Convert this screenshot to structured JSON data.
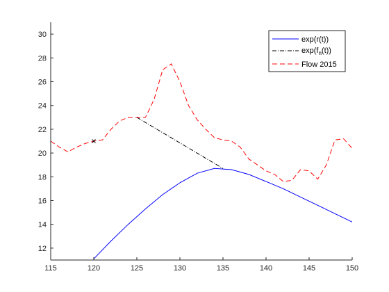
{
  "chart_data": {
    "type": "line",
    "xlim": [
      115,
      150
    ],
    "ylim": [
      11,
      31
    ],
    "xticks": [
      115,
      120,
      125,
      130,
      135,
      140,
      145,
      150
    ],
    "yticks": [
      12,
      14,
      16,
      18,
      20,
      22,
      24,
      26,
      28,
      30
    ],
    "grid": false,
    "legend_position": "top-right",
    "series": [
      {
        "name": "exp(r(t))",
        "color": "#0000ff",
        "style": "solid",
        "x": [
          120,
          122,
          124,
          126,
          128,
          130,
          132,
          134,
          136,
          138,
          140,
          142,
          144,
          146,
          148,
          150
        ],
        "y": [
          11.1,
          12.6,
          14.0,
          15.3,
          16.5,
          17.5,
          18.3,
          18.7,
          18.6,
          18.2,
          17.6,
          17.0,
          16.3,
          15.6,
          14.9,
          14.2
        ]
      },
      {
        "name": "exp(f_n(t))",
        "color": "#000000",
        "style": "dashdot",
        "x": [
          125,
          135
        ],
        "y": [
          23.0,
          18.7
        ]
      },
      {
        "name": "Flow 2015",
        "color": "#ff0000",
        "style": "dashed",
        "x": [
          115,
          116,
          117,
          118,
          119,
          120,
          121,
          122,
          123,
          124,
          125,
          126,
          127,
          128,
          129,
          130,
          131,
          132,
          133,
          134,
          135,
          136,
          137,
          138,
          139,
          140,
          141,
          142,
          143,
          144,
          145,
          146,
          147,
          148,
          149,
          150
        ],
        "y": [
          21.0,
          20.5,
          20.1,
          20.5,
          20.8,
          21.0,
          21.1,
          22.0,
          22.7,
          23.0,
          23.0,
          23.0,
          24.5,
          27.0,
          27.5,
          26.0,
          24.0,
          22.8,
          22.0,
          21.3,
          21.1,
          21.0,
          20.5,
          19.5,
          19.0,
          18.5,
          18.2,
          17.6,
          17.7,
          18.6,
          18.5,
          17.8,
          19.0,
          21.1,
          21.2,
          20.4
        ]
      }
    ],
    "markers": [
      {
        "shape": "x",
        "color": "#000000",
        "x": 120,
        "y": 21.0
      }
    ],
    "legend": [
      "exp(r(t))",
      "exp(f",
      "n",
      "(t))",
      "Flow 2015"
    ]
  }
}
